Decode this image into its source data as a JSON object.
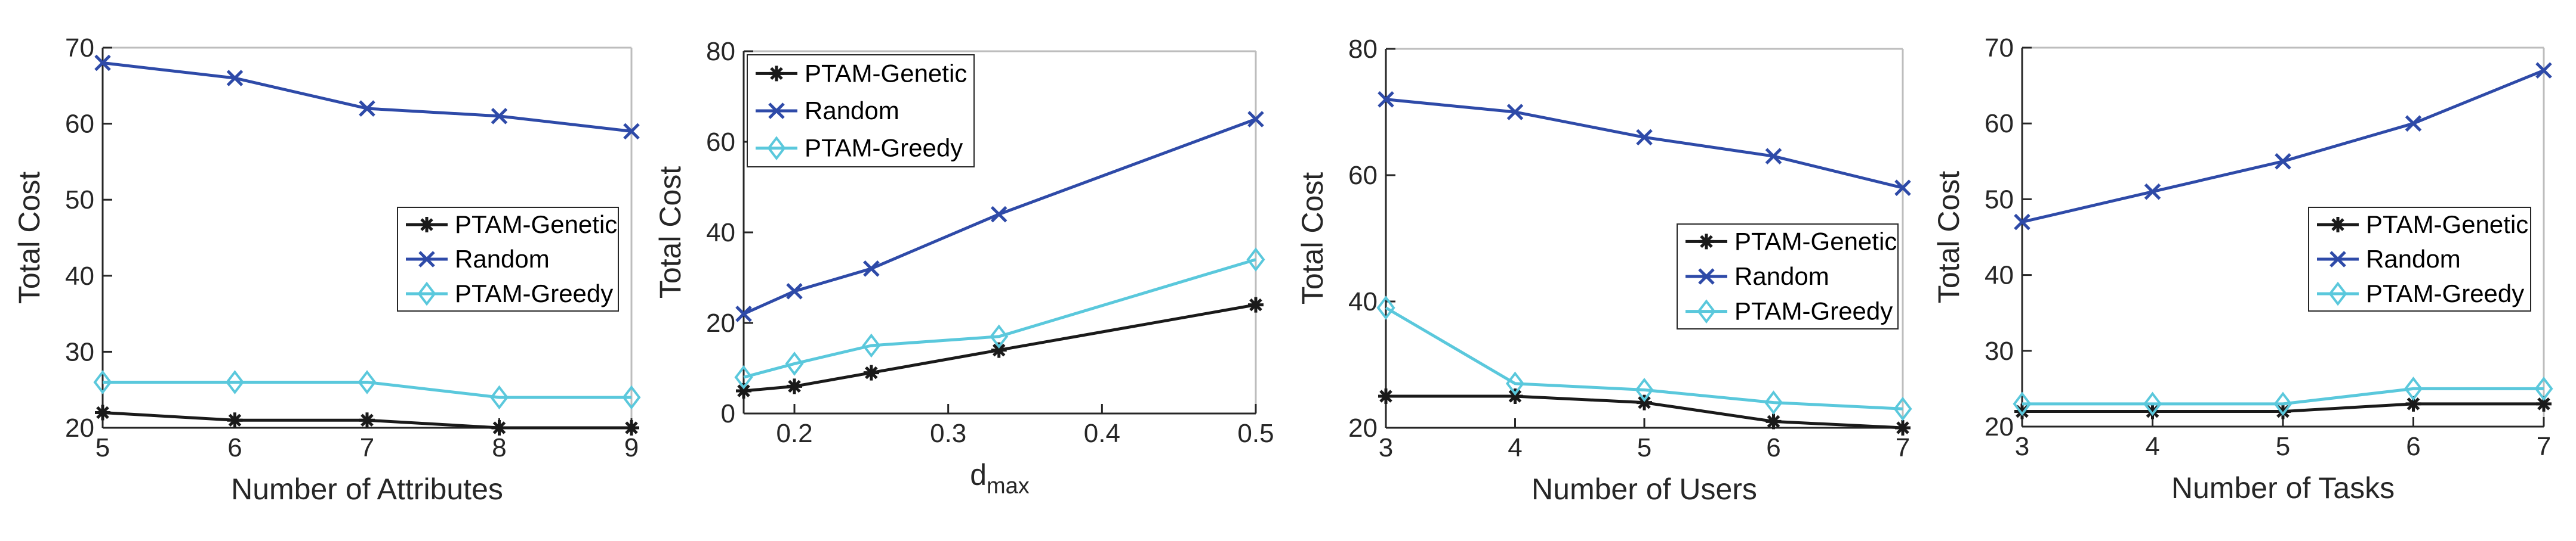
{
  "chart_data": [
    {
      "type": "line",
      "xlabel": "Number of Attributes",
      "ylabel": "Total Cost",
      "xlim": [
        5,
        9
      ],
      "ylim": [
        20,
        70
      ],
      "xticks": [
        5,
        6,
        7,
        8,
        9
      ],
      "xtick_labels": [
        "5",
        "6",
        "7",
        "8",
        "9"
      ],
      "yticks": [
        20,
        30,
        40,
        50,
        60,
        70
      ],
      "ytick_labels": [
        "20",
        "30",
        "40",
        "50",
        "60",
        "70"
      ],
      "legend_position": "center-right",
      "x": [
        5,
        6,
        7,
        8,
        9
      ],
      "series": [
        {
          "name": "PTAM-Genetic",
          "values": [
            22,
            21,
            21,
            20,
            20
          ]
        },
        {
          "name": "Random",
          "values": [
            68,
            66,
            62,
            61,
            59
          ]
        },
        {
          "name": "PTAM-Greedy",
          "values": [
            26,
            26,
            26,
            24,
            24
          ]
        }
      ]
    },
    {
      "type": "line",
      "xlabel": "d",
      "xlabel_subscript": "max",
      "ylabel": "Total Cost",
      "xlim": [
        0.167,
        0.5
      ],
      "ylim": [
        0,
        80
      ],
      "xticks": [
        0.2,
        0.3,
        0.4,
        0.5
      ],
      "xtick_labels": [
        "0.2",
        "0.3",
        "0.4",
        "0.5"
      ],
      "yticks": [
        0,
        20,
        40,
        60,
        80
      ],
      "ytick_labels": [
        "0",
        "20",
        "40",
        "60",
        "80"
      ],
      "legend_position": "top-left",
      "x": [
        0.167,
        0.2,
        0.25,
        0.333,
        0.5
      ],
      "series": [
        {
          "name": "PTAM-Genetic",
          "values": [
            5,
            6,
            9,
            14,
            24
          ]
        },
        {
          "name": "Random",
          "values": [
            22,
            27,
            32,
            44,
            65
          ]
        },
        {
          "name": "PTAM-Greedy",
          "values": [
            8,
            11,
            15,
            17,
            34
          ]
        }
      ]
    },
    {
      "type": "line",
      "xlabel": "Number of Users",
      "ylabel": "Total Cost",
      "xlim": [
        3,
        7
      ],
      "ylim": [
        20,
        80
      ],
      "xticks": [
        3,
        4,
        5,
        6,
        7
      ],
      "xtick_labels": [
        "3",
        "4",
        "5",
        "6",
        "7"
      ],
      "yticks": [
        20,
        40,
        60,
        80
      ],
      "ytick_labels": [
        "20",
        "40",
        "60",
        "80"
      ],
      "legend_position": "center-right",
      "x": [
        3,
        4,
        5,
        6,
        7
      ],
      "series": [
        {
          "name": "PTAM-Genetic",
          "values": [
            25,
            25,
            24,
            21,
            20
          ]
        },
        {
          "name": "Random",
          "values": [
            72,
            70,
            66,
            63,
            58
          ]
        },
        {
          "name": "PTAM-Greedy",
          "values": [
            39,
            27,
            26,
            24,
            23
          ]
        }
      ]
    },
    {
      "type": "line",
      "xlabel": "Number of Tasks",
      "ylabel": "Total Cost",
      "xlim": [
        3,
        7
      ],
      "ylim": [
        20,
        70
      ],
      "xticks": [
        3,
        4,
        5,
        6,
        7
      ],
      "xtick_labels": [
        "3",
        "4",
        "5",
        "6",
        "7"
      ],
      "yticks": [
        20,
        30,
        40,
        50,
        60,
        70
      ],
      "ytick_labels": [
        "20",
        "30",
        "40",
        "50",
        "60",
        "70"
      ],
      "legend_position": "center-right",
      "x": [
        3,
        4,
        5,
        6,
        7
      ],
      "series": [
        {
          "name": "PTAM-Genetic",
          "values": [
            22,
            22,
            22,
            23,
            23
          ]
        },
        {
          "name": "Random",
          "values": [
            47,
            51,
            55,
            60,
            67
          ]
        },
        {
          "name": "PTAM-Greedy",
          "values": [
            23,
            23,
            23,
            25,
            25
          ]
        }
      ]
    }
  ],
  "series_styles": [
    {
      "name": "PTAM-Genetic",
      "color": "#1a1a1a",
      "marker": "asterisk"
    },
    {
      "name": "Random",
      "color": "#2e4aa8",
      "marker": "x"
    },
    {
      "name": "PTAM-Greedy",
      "color": "#5ac8dc",
      "marker": "diamond"
    }
  ],
  "axis_color": "#262626",
  "box_color": "#bdbdbd"
}
